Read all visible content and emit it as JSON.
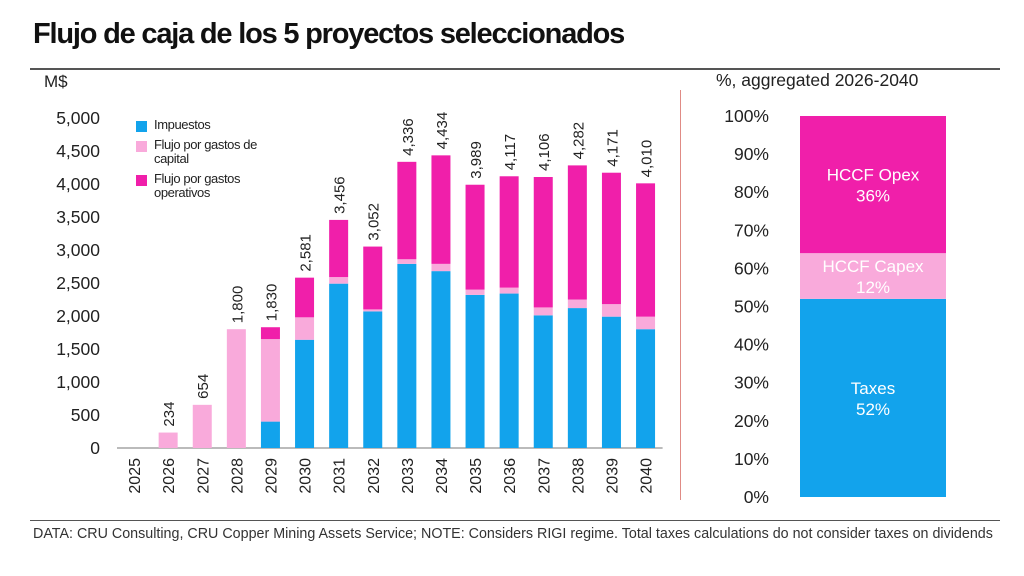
{
  "title": "Flujo de caja de los 5 proyectos seleccionados",
  "unit_label": "M$",
  "right_title": "%, aggregated 2026-2040",
  "footer": "DATA: CRU Consulting, CRU Copper Mining Assets Service; NOTE: Considers RIGI regime. Total taxes calculations do not consider taxes on dividends",
  "colors": {
    "taxes": "#12a3ec",
    "capex": "#f9aadb",
    "opex": "#f01faa",
    "divider": "#e08b85"
  },
  "legend": [
    {
      "key": "taxes",
      "label": "Impuestos"
    },
    {
      "key": "capex",
      "label": "Flujo por gastos de capital"
    },
    {
      "key": "opex",
      "label": "Flujo por gastos operativos"
    }
  ],
  "chart_data": [
    {
      "type": "bar",
      "stacked": true,
      "ylim": [
        0,
        5000
      ],
      "yticks": [
        "0",
        "500",
        "1,000",
        "1,500",
        "2,000",
        "2,500",
        "3,000",
        "3,500",
        "4,000",
        "4,500",
        "5,000"
      ],
      "categories": [
        "2025",
        "2026",
        "2027",
        "2028",
        "2029",
        "2030",
        "2031",
        "2032",
        "2033",
        "2034",
        "2035",
        "2036",
        "2037",
        "2038",
        "2039",
        "2040"
      ],
      "series": [
        {
          "name": "Impuestos",
          "values": [
            0,
            0,
            0,
            0,
            400,
            1640,
            2490,
            2070,
            2790,
            2680,
            2320,
            2340,
            2010,
            2120,
            1990,
            1800
          ]
        },
        {
          "name": "Flujo por gastos de capital",
          "values": [
            0,
            234,
            654,
            1800,
            1250,
            340,
            100,
            30,
            70,
            110,
            80,
            90,
            120,
            130,
            190,
            190
          ]
        },
        {
          "name": "Flujo por gastos operativos",
          "values": [
            0,
            0,
            0,
            0,
            180,
            601,
            866,
            952,
            1476,
            1644,
            1589,
            1687,
            1976,
            2032,
            1991,
            2020
          ]
        }
      ],
      "totals": [
        "",
        "234",
        "654",
        "1,800",
        "1,830",
        "2,581",
        "3,456",
        "3,052",
        "4,336",
        "4,434",
        "3,989",
        "4,117",
        "4,106",
        "4,282",
        "4,171",
        "4,010"
      ]
    },
    {
      "type": "bar",
      "stacked": true,
      "ylim": [
        0,
        100
      ],
      "yticks": [
        "0%",
        "10%",
        "20%",
        "30%",
        "40%",
        "50%",
        "60%",
        "70%",
        "80%",
        "90%",
        "100%"
      ],
      "segments": [
        {
          "key": "taxes",
          "name": "Taxes",
          "label": "52%",
          "value": 52
        },
        {
          "key": "capex",
          "name": "HCCF Capex",
          "label": "12%",
          "value": 12
        },
        {
          "key": "opex",
          "name": "HCCF Opex",
          "label": "36%",
          "value": 36
        }
      ]
    }
  ]
}
